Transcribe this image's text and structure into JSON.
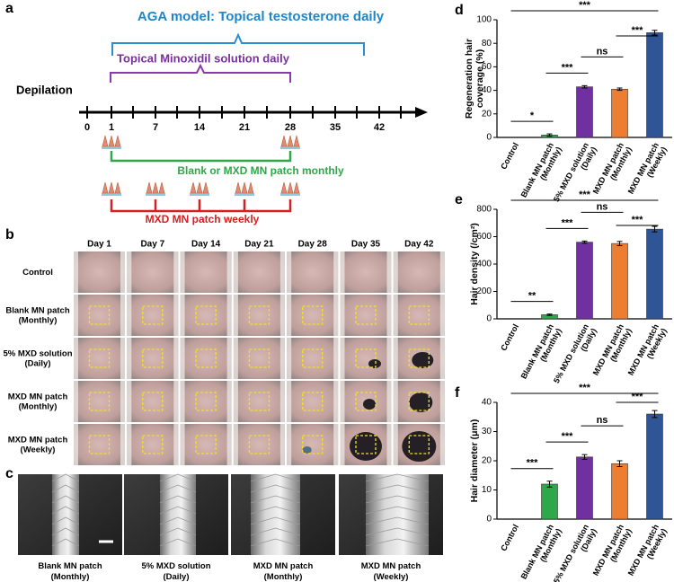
{
  "panel_a": {
    "label": "a",
    "testosterone": "AGA model: Topical testosterone daily",
    "minoxidil": "Topical Minoxidil solution daily",
    "depilation": "Depilation",
    "days": [
      0,
      1,
      7,
      14,
      21,
      28,
      35,
      42
    ],
    "monthly": "Blank or MXD MN patch monthly",
    "weekly": "MXD MN patch weekly"
  },
  "panel_b": {
    "label": "b",
    "columns": [
      "Day 1",
      "Day 7",
      "Day 14",
      "Day 21",
      "Day 28",
      "Day 35",
      "Day 42"
    ],
    "rows": [
      [
        "Control"
      ],
      [
        "Blank MN patch",
        "(Monthly)"
      ],
      [
        "5% MXD solution",
        "(Daily)"
      ],
      [
        "MXD MN patch",
        "(Monthly)"
      ],
      [
        "MXD MN patch",
        "(Weekly)"
      ]
    ]
  },
  "panel_c": {
    "label": "c",
    "images": [
      [
        "Blank MN patch",
        "(Monthly)"
      ],
      [
        "5% MXD solution",
        "(Daily)"
      ],
      [
        "MXD MN patch",
        "(Monthly)"
      ],
      [
        "MXD MN patch",
        "(Weekly)"
      ]
    ]
  },
  "chart_data": [
    {
      "type": "bar",
      "panel": "d",
      "y_label": [
        "Regeneration hair",
        "coverage (%)"
      ],
      "categories": [
        [
          "Control"
        ],
        [
          "Blank MN patch",
          "(Monthly)"
        ],
        [
          "5% MXD solution",
          "(Daily)"
        ],
        [
          "MXD MN patch",
          "(Monthly)"
        ],
        [
          "MXD MN patch",
          "(Weekly)"
        ]
      ],
      "values": [
        0,
        2,
        43,
        41,
        89
      ],
      "errors": [
        0,
        1,
        1,
        1,
        2
      ],
      "colors": [
        null,
        "#2ea84a",
        "#7030a0",
        "#ed7d31",
        "#2f5597"
      ],
      "ylim": [
        0,
        100
      ],
      "yticks": [
        0,
        20,
        40,
        60,
        80,
        100
      ],
      "annotations": [
        {
          "text": "*",
          "from": 0,
          "to": 1
        },
        {
          "text": "***",
          "from": 1,
          "to": 2
        },
        {
          "text": "ns",
          "from": 2,
          "to": 3
        },
        {
          "text": "***",
          "from": 3,
          "to": 4
        },
        {
          "text": "***",
          "from": 0,
          "to": 4
        }
      ]
    },
    {
      "type": "bar",
      "panel": "e",
      "y_label": [
        "Hair density (/cm²)"
      ],
      "categories": [
        [
          "Control"
        ],
        [
          "Blank MN patch",
          "(Monthly)"
        ],
        [
          "5% MXD solution",
          "(Daily)"
        ],
        [
          "MXD MN patch",
          "(Monthly)"
        ],
        [
          "MXD MN patch",
          "(Weekly)"
        ]
      ],
      "values": [
        0,
        30,
        560,
        550,
        655
      ],
      "errors": [
        0,
        5,
        8,
        15,
        20
      ],
      "colors": [
        null,
        "#2ea84a",
        "#7030a0",
        "#ed7d31",
        "#2f5597"
      ],
      "ylim": [
        0,
        800
      ],
      "yticks": [
        0,
        200,
        400,
        600,
        800
      ],
      "annotations": [
        {
          "text": "**",
          "from": 0,
          "to": 1
        },
        {
          "text": "***",
          "from": 1,
          "to": 2
        },
        {
          "text": "ns",
          "from": 2,
          "to": 3
        },
        {
          "text": "***",
          "from": 3,
          "to": 4
        },
        {
          "text": "***",
          "from": 0,
          "to": 4
        }
      ]
    },
    {
      "type": "bar",
      "panel": "f",
      "y_label": [
        "Hair diameter (μm)"
      ],
      "categories": [
        [
          "Control"
        ],
        [
          "Blank MN patch",
          "(Monthly)"
        ],
        [
          "5% MXD solution",
          "(Daily)"
        ],
        [
          "MXD MN patch",
          "(Monthly)"
        ],
        [
          "MXD MN patch",
          "(Weekly)"
        ]
      ],
      "values": [
        0,
        12,
        21.3,
        19,
        36
      ],
      "errors": [
        0,
        1,
        0.8,
        1,
        1.2
      ],
      "colors": [
        null,
        "#2ea84a",
        "#7030a0",
        "#ed7d31",
        "#2f5597"
      ],
      "ylim": [
        0,
        40
      ],
      "yticks": [
        0,
        10,
        20,
        30,
        40
      ],
      "annotations": [
        {
          "text": "***",
          "from": 0,
          "to": 1
        },
        {
          "text": "***",
          "from": 1,
          "to": 2
        },
        {
          "text": "ns",
          "from": 2,
          "to": 3
        },
        {
          "text": "***",
          "from": 3,
          "to": 4
        },
        {
          "text": "***",
          "from": 0,
          "to": 4
        }
      ]
    }
  ]
}
